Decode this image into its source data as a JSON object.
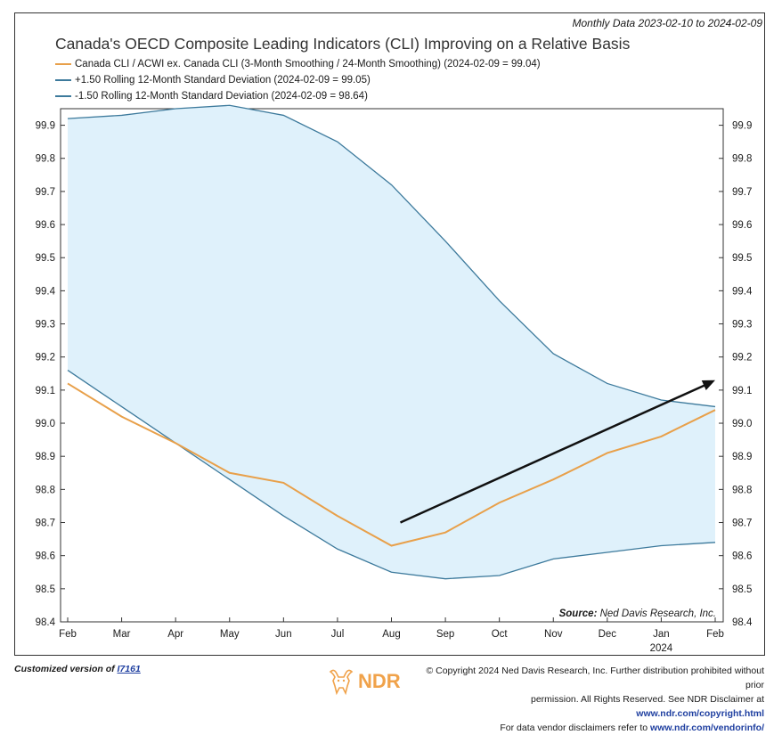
{
  "header": {
    "date_range": "Monthly Data 2023-02-10 to 2024-02-09",
    "title": "Canada's OECD Composite Leading Indicators (CLI) Improving on a Relative Basis"
  },
  "legend": [
    {
      "label": "Canada CLI / ACWI ex. Canada CLI (3-Month Smoothing / 24-Month Smoothing) (2024-02-09 = 99.04)",
      "color": "#e8a04a"
    },
    {
      "label": "+1.50 Rolling 12-Month Standard Deviation (2024-02-09 = 99.05)",
      "color": "#3d7a9c"
    },
    {
      "label": "-1.50 Rolling 12-Month Standard Deviation (2024-02-09 = 98.64)",
      "color": "#3d7a9c"
    }
  ],
  "source": {
    "label": "Source:",
    "text": "Ned Davis Research, Inc."
  },
  "footer": {
    "customized_prefix": "Customized version of ",
    "customized_link": "I7161",
    "ndr_logo_text": "NDR",
    "copyright_line1": "© Copyright 2024 Ned Davis Research, Inc. Further distribution prohibited without prior",
    "copyright_line2_prefix": "permission. All Rights Reserved. See NDR Disclaimer at ",
    "copyright_line2_link": "www.ndr.com/copyright.html",
    "copyright_line3_prefix": "For data vendor disclaimers refer to ",
    "copyright_line3_link": "www.ndr.com/vendorinfo/"
  },
  "chart_data": {
    "type": "line",
    "title": "Canada's OECD Composite Leading Indicators (CLI) Improving on a Relative Basis",
    "categories": [
      "Feb",
      "Mar",
      "Apr",
      "May",
      "Jun",
      "Jul",
      "Aug",
      "Sep",
      "Oct",
      "Nov",
      "Dec",
      "Jan",
      "Feb"
    ],
    "year_label": "2024",
    "year_label_under": "Jan",
    "ylim": [
      98.4,
      99.95
    ],
    "yticks": [
      "98.4",
      "98.5",
      "98.6",
      "98.7",
      "98.8",
      "98.9",
      "99.0",
      "99.1",
      "99.2",
      "99.3",
      "99.4",
      "99.5",
      "99.6",
      "99.7",
      "99.8",
      "99.9"
    ],
    "series": [
      {
        "name": "Canada CLI / ACWI ex. Canada CLI",
        "color": "#e8a04a",
        "values": [
          99.12,
          99.02,
          98.94,
          98.85,
          98.82,
          98.72,
          98.63,
          98.67,
          98.76,
          98.83,
          98.91,
          98.96,
          99.04
        ]
      },
      {
        "name": "+1.50 Rolling 12-Month Standard Deviation",
        "color": "#3d7a9c",
        "values": [
          99.92,
          99.93,
          99.95,
          99.96,
          99.93,
          99.85,
          99.72,
          99.55,
          99.37,
          99.21,
          99.12,
          99.07,
          99.05
        ]
      },
      {
        "name": "-1.50 Rolling 12-Month Standard Deviation",
        "color": "#3d7a9c",
        "values": [
          99.16,
          99.05,
          98.94,
          98.83,
          98.72,
          98.62,
          98.55,
          98.53,
          98.54,
          98.59,
          98.61,
          98.63,
          98.64
        ]
      }
    ],
    "band_fill": "#dff1fb",
    "annotation_arrow": {
      "from": {
        "x": "Aug",
        "y": 98.7
      },
      "to": {
        "x": "Feb",
        "y": 99.13
      },
      "color": "#111111"
    }
  }
}
